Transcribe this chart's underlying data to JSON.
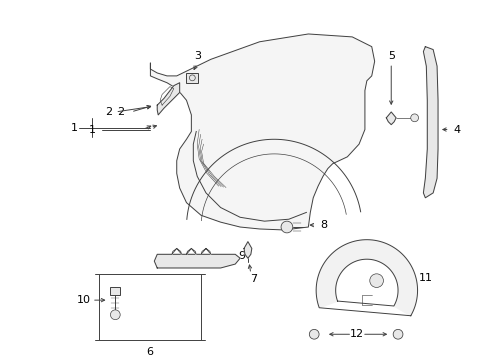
{
  "bg_color": "#ffffff",
  "line_color": "#404040",
  "label_color": "#000000",
  "font_size": 8,
  "figsize": [
    4.89,
    3.6
  ],
  "dpi": 100
}
